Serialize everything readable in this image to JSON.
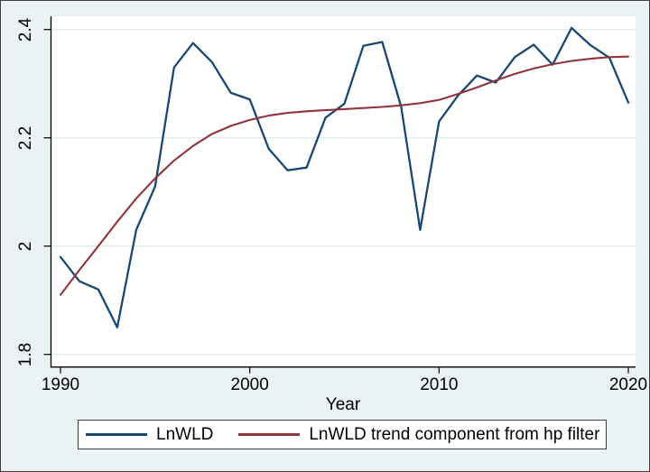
{
  "colors": {
    "figure_background": "#eaf2f3",
    "plot_background": "#ffffff",
    "gridline": "#dfebed",
    "axis": "#000000",
    "series_navy": "#1a476f",
    "series_maroon": "#90353b"
  },
  "chart_data": {
    "type": "line",
    "title": "",
    "xlabel": "Year",
    "ylabel": "",
    "x": [
      1990,
      1991,
      1992,
      1993,
      1994,
      1995,
      1996,
      1997,
      1998,
      1999,
      2000,
      2001,
      2002,
      2003,
      2004,
      2005,
      2006,
      2007,
      2008,
      2009,
      2010,
      2011,
      2012,
      2013,
      2014,
      2015,
      2016,
      2017,
      2018,
      2019,
      2020
    ],
    "series": [
      {
        "name": "LnWLD",
        "color": "#1a476f",
        "values": [
          1.98,
          1.935,
          1.92,
          1.85,
          2.03,
          2.11,
          2.33,
          2.375,
          2.34,
          2.283,
          2.271,
          2.18,
          2.14,
          2.145,
          2.237,
          2.263,
          2.37,
          2.377,
          2.257,
          2.03,
          2.23,
          2.278,
          2.315,
          2.302,
          2.349,
          2.372,
          2.335,
          2.403,
          2.371,
          2.348,
          2.265
        ]
      },
      {
        "name": "LnWLD trend component from hp filter",
        "color": "#90353b",
        "values": [
          1.91,
          1.956,
          2.0,
          2.045,
          2.088,
          2.125,
          2.158,
          2.185,
          2.207,
          2.222,
          2.233,
          2.241,
          2.246,
          2.249,
          2.251,
          2.253,
          2.255,
          2.257,
          2.26,
          2.264,
          2.27,
          2.281,
          2.293,
          2.306,
          2.318,
          2.328,
          2.336,
          2.342,
          2.346,
          2.349,
          2.35
        ]
      }
    ],
    "x_ticks": [
      1990,
      2000,
      2010,
      2020
    ],
    "x_tick_labels": [
      "1990",
      "2000",
      "2010",
      "2020"
    ],
    "y_ticks": [
      1.8,
      2.0,
      2.2,
      2.4
    ],
    "y_tick_labels": [
      "1.8",
      "2",
      "2.2",
      "2.4"
    ],
    "xlim": [
      1989.5,
      2020.4
    ],
    "ylim": [
      1.777,
      2.424
    ],
    "grid": "horizontal",
    "legend_position": "bottom"
  }
}
